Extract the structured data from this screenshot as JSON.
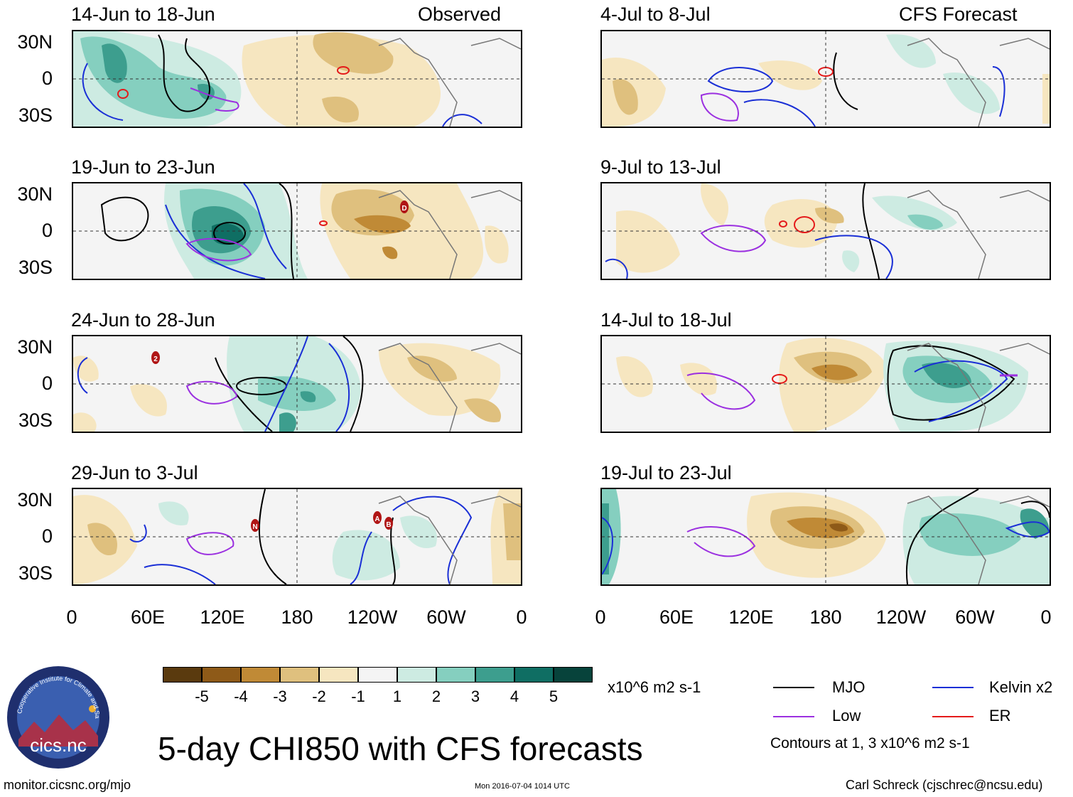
{
  "panels": [
    {
      "period": "14-Jun to 18-Jun",
      "label": "Observed"
    },
    {
      "period": "4-Jul to 8-Jul",
      "label": "CFS Forecast"
    },
    {
      "period": "19-Jun to 23-Jun",
      "label": ""
    },
    {
      "period": "9-Jul to 13-Jul",
      "label": ""
    },
    {
      "period": "24-Jun to 28-Jun",
      "label": ""
    },
    {
      "period": "14-Jul to 18-Jul",
      "label": ""
    },
    {
      "period": "29-Jun to 3-Jul",
      "label": ""
    },
    {
      "period": "19-Jul to 23-Jul",
      "label": ""
    }
  ],
  "lat_labels": [
    "30N",
    "0",
    "30S"
  ],
  "lon_labels": [
    "0",
    "60E",
    "120E",
    "180",
    "120W",
    "60W",
    "0"
  ],
  "colorbar": {
    "colors": [
      "#5a3a0e",
      "#8e5a18",
      "#c08a36",
      "#dfc07e",
      "#f6e6c0",
      "#f4f4f4",
      "#cdebe2",
      "#85cfbf",
      "#3d9e8e",
      "#0f6e63",
      "#07433b"
    ],
    "ticks": [
      "-5",
      "-4",
      "-3",
      "-2",
      "-1",
      "1",
      "2",
      "3",
      "4",
      "5"
    ],
    "units": "x10^6 m2 s-1"
  },
  "legend": {
    "items": [
      {
        "label": "MJO",
        "color": "#000000"
      },
      {
        "label": "Kelvin x2",
        "color": "#1a2fd6"
      },
      {
        "label": "Low",
        "color": "#9b30e0"
      },
      {
        "label": "ER",
        "color": "#e41a1a"
      }
    ],
    "contours_note": "Contours at 1, 3 x10^6 m2 s-1"
  },
  "logo_text": "cics.nc",
  "logo_ring_text": "Cooperative Institute for Climate and Satellites",
  "main_title": "5-day CHI850 with CFS forecasts",
  "footer": {
    "url": "monitor.cicsnc.org/mjo",
    "timestamp": "Mon 2016-07-04 1014 UTC",
    "author": "Carl Schreck (cjschrec@ncsu.edu)"
  },
  "markers": [
    {
      "panel": 2,
      "text": "D"
    },
    {
      "panel": 4,
      "text": "2"
    },
    {
      "panel": 6,
      "text": "N"
    },
    {
      "panel": 6,
      "text": "A"
    },
    {
      "panel": 6,
      "text": "B"
    }
  ]
}
